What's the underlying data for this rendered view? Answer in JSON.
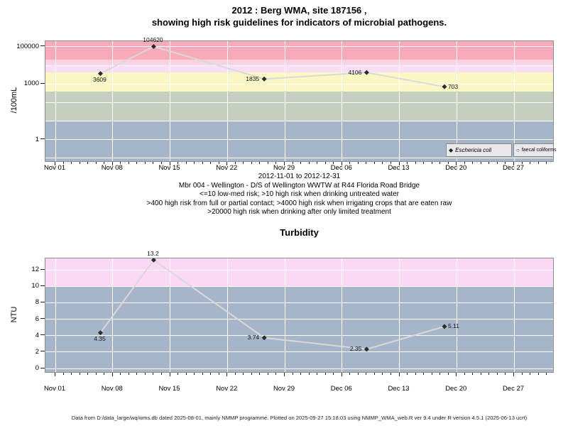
{
  "page": {
    "title_line1": "2012 : Berg WMA, site 187156 ,",
    "title_line2": "showing high risk guidelines for indicators of microbial pathogens.",
    "chart2_title": "Turbidity",
    "footer": "Data from D:/data_large/wq/wms.db dated 2025-08-01, mainly NMMP programme. Plotted on 2025-09-27 15:18:03 using NMMP_WMA_web.R ver 9.4 under R version 4.5.1 (2025-06-13 ucrt)"
  },
  "annotations": {
    "x_range_label": "2012-11-01 to 2012-12-31",
    "site_line": "Mbr 004 - Wellington - D/S of Wellington WWTW at R44 Florida Road Bridge",
    "guideline_lines": [
      "<=10 low-med risk; >10 high risk when drinking untreated water",
      ">400 high risk from full or partial contact; >4000 high risk when irrigating crops that are eaten raw",
      ">20000 high risk when drinking after only limited treatment"
    ]
  },
  "legend": {
    "items": [
      {
        "symbol": "filled-diamond",
        "label": "Eschericia coli",
        "italic": true
      },
      {
        "symbol": "open-circle",
        "label": "faecal coliforms",
        "italic": false
      }
    ]
  },
  "colors": {
    "line": "#d9d9d9",
    "marker": "#2b2b2b",
    "grid": "#ffffff",
    "band_high_pink": "#f8acb9",
    "band_light_pink": "#fad3e2",
    "band_lavender": "#f9def5",
    "band_yellow": "#fbf7c5",
    "band_graygreen": "#c5cfc0",
    "band_bluegray": "#a7b5ca",
    "band_turbidity_pink": "#fbd8f4"
  },
  "chart_data": [
    {
      "type": "line",
      "name": "microbial-pathogens",
      "title": "2012 : Berg WMA, site 187156 , showing high risk guidelines for indicators of microbial pathogens.",
      "ylabel": "/100mL",
      "yscale": "log",
      "ylim": [
        0.057,
        202000
      ],
      "xlim_days": [
        -1.214,
        60.94
      ],
      "yticks": [
        {
          "value": 100000,
          "label": "100000"
        },
        {
          "value": 1000,
          "label": "1000"
        },
        {
          "value": 1,
          "label": "1"
        }
      ],
      "grid_values": [
        0.1,
        1,
        10,
        100,
        1000,
        10000,
        100000
      ],
      "x_tick_days": [
        0,
        7,
        14,
        21,
        28,
        35,
        42,
        49,
        56
      ],
      "x_tick_labels": [
        "Nov 01",
        "Nov 08",
        "Nov 15",
        "Nov 22",
        "Nov 29",
        "Dec 06",
        "Dec 13",
        "Dec 20",
        "Dec 27"
      ],
      "bands": [
        {
          "min": 20000,
          "max": null,
          "color": "#f8acb9"
        },
        {
          "min": 10000,
          "max": 20000,
          "color": "#fad3e2"
        },
        {
          "min": 4000,
          "max": 10000,
          "color": "#f9def5"
        },
        {
          "min": 400,
          "max": 4000,
          "color": "#fbf7c5"
        },
        {
          "min": 10,
          "max": 400,
          "color": "#c5cfc0"
        },
        {
          "min": null,
          "max": 10,
          "color": "#a7b5ca"
        }
      ],
      "series": [
        {
          "name": "Eschericia coli",
          "marker": "filled-diamond",
          "points": [
            {
              "day": 5.5,
              "value": 3609,
              "label": "3609",
              "label_pos": "below"
            },
            {
              "day": 12,
              "value": 104620,
              "label": "104620",
              "label_pos": "above"
            },
            {
              "day": 25.5,
              "value": 1835,
              "label": "1835",
              "label_pos": "left"
            },
            {
              "day": 38,
              "value": 4106,
              "label": "4106",
              "label_pos": "left"
            },
            {
              "day": 47.5,
              "value": 703,
              "label": "703",
              "label_pos": "right"
            }
          ]
        },
        {
          "name": "faecal coliforms",
          "marker": "open-circle",
          "points": []
        }
      ]
    },
    {
      "type": "line",
      "name": "turbidity",
      "title": "Turbidity",
      "ylabel": "NTU",
      "yscale": "linear",
      "ylim": [
        -0.6,
        13.39
      ],
      "xlim_days": [
        -1.214,
        60.94
      ],
      "yticks": [
        {
          "value": 0,
          "label": "0"
        },
        {
          "value": 2,
          "label": "2"
        },
        {
          "value": 4,
          "label": "4"
        },
        {
          "value": 6,
          "label": "6"
        },
        {
          "value": 8,
          "label": "8"
        },
        {
          "value": 10,
          "label": "10"
        },
        {
          "value": 12,
          "label": "12"
        }
      ],
      "grid_values": [
        0,
        2,
        4,
        6,
        8,
        10,
        12
      ],
      "x_tick_days": [
        0,
        7,
        14,
        21,
        28,
        35,
        42,
        49,
        56
      ],
      "x_tick_labels": [
        "Nov 01",
        "Nov 08",
        "Nov 15",
        "Nov 22",
        "Nov 29",
        "Dec 06",
        "Dec 13",
        "Dec 20",
        "Dec 27"
      ],
      "bands": [
        {
          "min": 10,
          "max": null,
          "color": "#fbd8f4"
        },
        {
          "min": null,
          "max": 10,
          "color": "#a7b5ca"
        }
      ],
      "series": [
        {
          "name": "Turbidity",
          "marker": "filled-diamond",
          "points": [
            {
              "day": 5.5,
              "value": 4.35,
              "label": "4.35",
              "label_pos": "below"
            },
            {
              "day": 12,
              "value": 13.2,
              "label": "13.2",
              "label_pos": "above"
            },
            {
              "day": 25.5,
              "value": 3.74,
              "label": "3.74",
              "label_pos": "left"
            },
            {
              "day": 38,
              "value": 2.35,
              "label": "2.35",
              "label_pos": "left"
            },
            {
              "day": 47.5,
              "value": 5.11,
              "label": "5.11",
              "label_pos": "right"
            }
          ]
        }
      ]
    }
  ]
}
